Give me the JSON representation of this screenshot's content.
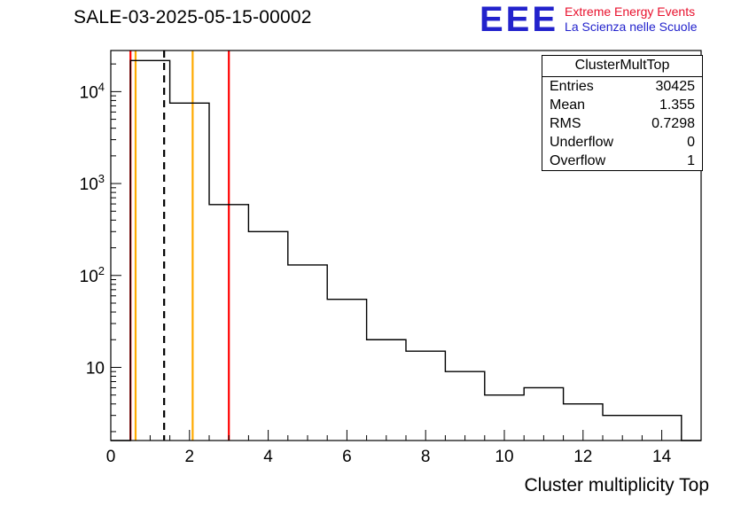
{
  "title": "SALE-03-2025-05-15-00002",
  "logo": {
    "acronym": "EEE",
    "line1": "Extreme Energy Events",
    "line2": "La Scienza nelle Scuole",
    "acronym_color": "#2222cc",
    "line1_color": "#e8112d",
    "line2_color": "#2222cc"
  },
  "stats": {
    "title": "ClusterMultTop",
    "rows": [
      {
        "label": "Entries",
        "value": "30425"
      },
      {
        "label": "Mean",
        "value": "1.355"
      },
      {
        "label": "RMS",
        "value": "0.7298"
      },
      {
        "label": "Underflow",
        "value": "0"
      },
      {
        "label": "Overflow",
        "value": "1"
      }
    ]
  },
  "chart_data": {
    "type": "bar",
    "style": "step-histogram",
    "title": "SALE-03-2025-05-15-00002",
    "xlabel": "Cluster multiplicity Top",
    "ylabel": "",
    "xlim": [
      0,
      15
    ],
    "ylim": [
      1.6,
      28000
    ],
    "yscale": "log",
    "grid": false,
    "xticks": [
      0,
      2,
      4,
      6,
      8,
      10,
      12,
      14
    ],
    "x_minor_step": 0.5,
    "ytick_exponents": [
      1,
      2,
      3,
      4
    ],
    "bin_edges": [
      0.5,
      1.5,
      2.5,
      3.5,
      4.5,
      5.5,
      6.5,
      7.5,
      8.5,
      9.5,
      10.5,
      11.5,
      12.5,
      13.5,
      14.5
    ],
    "values": [
      21800,
      7500,
      590,
      300,
      130,
      55,
      20,
      15,
      9,
      5,
      6,
      4,
      3,
      3
    ],
    "line_color": "#000000",
    "marker_lines": [
      {
        "x": 0.5,
        "color": "#ff0000",
        "style": "solid",
        "name": "red-lower-limit"
      },
      {
        "x": 0.63,
        "color": "#ffaa00",
        "style": "solid",
        "name": "yellow-lower-limit"
      },
      {
        "x": 1.355,
        "color": "#000000",
        "style": "dashed",
        "name": "mean-line"
      },
      {
        "x": 2.08,
        "color": "#ffaa00",
        "style": "solid",
        "name": "yellow-upper-limit"
      },
      {
        "x": 3.0,
        "color": "#ff0000",
        "style": "solid",
        "name": "red-upper-limit"
      }
    ]
  }
}
